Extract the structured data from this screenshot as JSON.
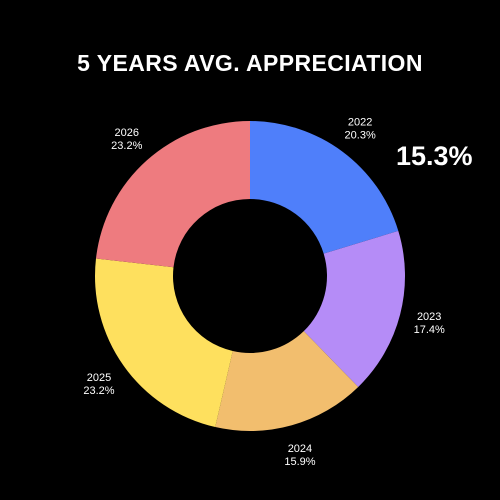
{
  "chart_data": {
    "type": "pie",
    "title": "5 YEARS AVG. APPRECIATION",
    "highlight_value": "15.3%",
    "categories": [
      "2022",
      "2023",
      "2024",
      "2025",
      "2026"
    ],
    "values": [
      20.3,
      17.4,
      15.9,
      23.2,
      23.2
    ],
    "value_labels": [
      "20.3%",
      "17.4%",
      "15.9%",
      "23.2%",
      "23.2%"
    ],
    "colors": [
      "#4F7FFA",
      "#B58CF7",
      "#F2BE6E",
      "#FEE05E",
      "#EE7B7F"
    ],
    "donut": true
  }
}
